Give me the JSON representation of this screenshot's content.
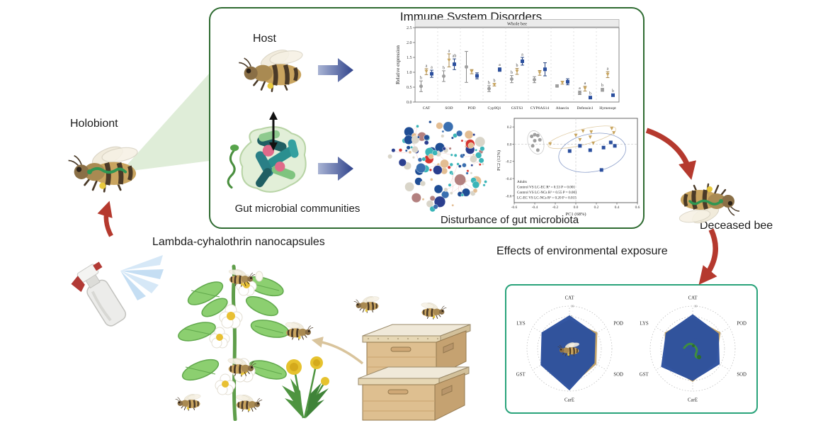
{
  "figure": {
    "labels": {
      "holobiont": "Holobiont",
      "host": "Host",
      "immune_title": "Immune System Disorders",
      "gut_microbial": "Gut microbial communities",
      "disturbance": "Disturbance of gut microbiota",
      "nanocapsules": "Lambda-cyhalothrin nanocapsules",
      "deceased": "Deceased bee",
      "effects": "Effects of environmental exposure"
    },
    "colors": {
      "panel_border_green": "#2e6b31",
      "radar_border_teal": "#29a37a",
      "red_arrow": "#b5392e",
      "blue_arrow_dark": "#31448c",
      "blue_arrow_light": "#a9b4d4",
      "beam_green": "#ddecd6",
      "tan_arrow": "#d9c49c",
      "series_control": "#9e9e9e",
      "series_lc_ec": "#c8a45c",
      "series_lc_ncs": "#2b4f9e"
    }
  },
  "chart_data": [
    {
      "type": "dot-error",
      "panel_label": "Whole bee",
      "ylabel": "Relative expression",
      "ylim": [
        0,
        2.5
      ],
      "yticks": [
        0,
        0.5,
        1,
        1.5,
        2,
        2.5
      ],
      "categories": [
        "CAT",
        "SOD",
        "POD",
        "Cyp9Q1",
        "GSTS3",
        "CYP6AS14",
        "Abaecin",
        "Defensin1",
        "Hymenopt"
      ],
      "series": [
        {
          "name": "Control",
          "marker": "circle",
          "color": "#9e9e9e",
          "bar_color": "#8a8a8a",
          "values": [
            0.53,
            0.87,
            1.18,
            0.45,
            0.77,
            0.75,
            0.54,
            0.31,
            0.41
          ],
          "errors": [
            0.18,
            0.18,
            0.52,
            0.1,
            0.12,
            0.1,
            0.04,
            0.06,
            0.05
          ],
          "letters": [
            "b",
            "b",
            "",
            "b",
            "b",
            "",
            "",
            "a",
            "b"
          ]
        },
        {
          "name": "LC-EC",
          "marker": "triangle-down",
          "color": "#c8a45c",
          "bar_color": "#a8874a",
          "values": [
            1.02,
            1.4,
            1.02,
            0.58,
            1.03,
            0.98,
            0.65,
            0.45,
            0.92
          ],
          "errors": [
            0.1,
            0.22,
            0.07,
            0.04,
            0.1,
            0.08,
            0.05,
            0.08,
            0.1
          ],
          "letters": [
            "a",
            "a",
            "",
            "b",
            "b",
            "",
            "",
            "a",
            "a"
          ]
        },
        {
          "name": "LC-NCs",
          "marker": "square",
          "color": "#2b4f9e",
          "bar_color": "#23417f",
          "values": [
            0.95,
            1.27,
            0.88,
            1.09,
            1.37,
            1.1,
            0.68,
            0.15,
            0.23
          ],
          "errors": [
            0.12,
            0.18,
            0.1,
            0.06,
            0.13,
            0.22,
            0.1,
            0.04,
            0.04
          ],
          "letters": [
            "a",
            "ab",
            "",
            "a",
            "a",
            "",
            "",
            "b",
            "b"
          ]
        }
      ]
    },
    {
      "type": "network",
      "description": "Gut microbial co-occurrence network",
      "node_count": 120,
      "palette": [
        "#3ab5b8",
        "#3ab5b8",
        "#3ab5b8",
        "#1f4d94",
        "#1f4d94",
        "#3a6fb0",
        "#d9d5c9",
        "#d9d5c9",
        "#d9d5c9",
        "#d6352f",
        "#e3bd92",
        "#e3bd92",
        "#b3807f",
        "#2b3f8f"
      ],
      "edge_color": "#eaa9a9"
    },
    {
      "type": "scatter",
      "xlabel": "PC1 (68%)",
      "ylabel": "PC2 (12%)",
      "xlim": [
        -0.6,
        0.6
      ],
      "ylim": [
        -0.68,
        0.3
      ],
      "xticks": [
        -0.6,
        -0.4,
        -0.2,
        0,
        0.2,
        0.4,
        0.6
      ],
      "yticks": [
        0.2,
        0,
        -0.2,
        -0.4,
        -0.6
      ],
      "annotations": [
        "Adults",
        "Control VS LC-EC R² = 0.53 P = 0.001",
        "Control VS LC-NCs R² = 0.55 P = 0.001",
        "LC-EC VS LC-NCs R² = 0.20 P = 0.015"
      ],
      "series": [
        {
          "name": "Control",
          "marker": "circle",
          "color": "#9e9e9e",
          "points": [
            [
              -0.43,
              0.09
            ],
            [
              -0.4,
              0.11
            ],
            [
              -0.37,
              0.1
            ],
            [
              -0.35,
              0.05
            ],
            [
              -0.4,
              0.04
            ],
            [
              -0.42,
              -0.02
            ],
            [
              -0.37,
              -0.07
            ]
          ],
          "ellipse": {
            "cx": -0.39,
            "cy": 0.02,
            "rx": 0.075,
            "ry": 0.14,
            "rot": -18
          }
        },
        {
          "name": "LC-EC",
          "marker": "triangle-down",
          "color": "#c8a45c",
          "points": [
            [
              -0.25,
              0.0
            ],
            [
              0.0,
              0.1
            ],
            [
              0.07,
              0.15
            ],
            [
              0.04,
              0.05
            ],
            [
              0.14,
              0.08
            ],
            [
              0.15,
              0.14
            ],
            [
              0.35,
              0.18
            ],
            [
              0.37,
              0.13
            ],
            [
              0.17,
              0.01
            ]
          ],
          "ellipse": {
            "cx": 0.06,
            "cy": 0.08,
            "rx": 0.34,
            "ry": 0.09,
            "rot": -14
          }
        },
        {
          "name": "LC-NCs",
          "marker": "square",
          "color": "#2b4f9e",
          "points": [
            [
              -0.06,
              -0.08
            ],
            [
              0.04,
              -0.02
            ],
            [
              0.14,
              -0.07
            ],
            [
              0.27,
              -0.04
            ],
            [
              0.34,
              0.02
            ],
            [
              0.38,
              -0.02
            ],
            [
              0.25,
              -0.3
            ]
          ],
          "ellipse": {
            "cx": 0.16,
            "cy": -0.1,
            "rx": 0.33,
            "ry": 0.22,
            "rot": -10
          }
        }
      ]
    },
    {
      "type": "radar",
      "center_icon": "adult bee",
      "axes": [
        "CAT",
        "POD",
        "SOD",
        "CarE",
        "GST",
        "LYS"
      ],
      "scale": {
        "min": -10,
        "max": 10
      },
      "tick_labels": [
        "10",
        "5",
        "0",
        "-5"
      ],
      "series": [
        {
          "name": "LC-EC",
          "color": "#c2a164",
          "values": [
            3.5,
            5,
            4.5,
            8,
            5,
            4.5
          ]
        },
        {
          "name": "LC-NCs",
          "color": "#2b4f9e",
          "values": [
            5.5,
            4,
            3.5,
            9.5,
            5.5,
            5
          ]
        }
      ]
    },
    {
      "type": "radar",
      "center_icon": "larva",
      "axes": [
        "CAT",
        "POD",
        "SOD",
        "CarE",
        "GST",
        "LYS"
      ],
      "scale": {
        "min": -10,
        "max": 10
      },
      "tick_labels": [
        "10",
        "5",
        "0",
        "-5"
      ],
      "series": [
        {
          "name": "LC-EC",
          "color": "#c2a164",
          "values": [
            4.5,
            5,
            2.5,
            5.5,
            5,
            5
          ]
        },
        {
          "name": "LC-NCs",
          "color": "#2b4f9e",
          "values": [
            6,
            4,
            4.5,
            5,
            7,
            4.5
          ]
        }
      ]
    }
  ]
}
